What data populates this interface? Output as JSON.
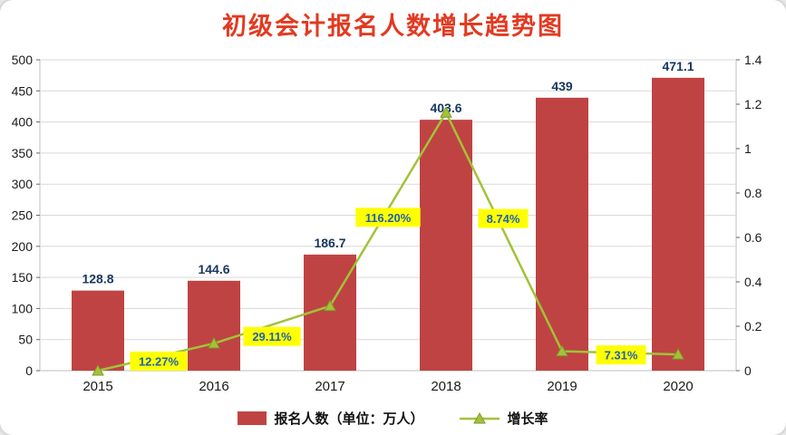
{
  "chart_data": {
    "type": "bar+line",
    "title": "初级会计报名人数增长趋势图",
    "categories": [
      "2015",
      "2016",
      "2017",
      "2018",
      "2019",
      "2020"
    ],
    "series": [
      {
        "name": "报名人数（单位：万人）",
        "type": "bar",
        "axis": "left",
        "values": [
          128.8,
          144.6,
          186.7,
          403.6,
          439,
          471.1
        ],
        "labels": [
          "128.8",
          "144.6",
          "186.7",
          "403.6",
          "439",
          "471.1"
        ],
        "color": "#bf4342"
      },
      {
        "name": "增长率",
        "type": "line",
        "axis": "right",
        "values": [
          0,
          0.1227,
          0.2911,
          1.162,
          0.0874,
          0.0731
        ],
        "labels": [
          "",
          "12.27%",
          "29.11%",
          "116.20%",
          "8.74%",
          "7.31%"
        ],
        "color": "#a2c239"
      }
    ],
    "axes": {
      "left": {
        "min": 0,
        "max": 500,
        "step": 50,
        "ticks": [
          "0",
          "50",
          "100",
          "150",
          "200",
          "250",
          "300",
          "350",
          "400",
          "450",
          "500"
        ]
      },
      "right": {
        "min": 0,
        "max": 1.4,
        "step": 0.2,
        "ticks": [
          "0",
          "0.2",
          "0.4",
          "0.6",
          "0.8",
          "1",
          "1.2",
          "1.4"
        ]
      }
    },
    "grid": true,
    "legend_position": "bottom"
  },
  "colors": {
    "title": "#e23a21",
    "bar": "#bf4342",
    "line": "#a2c239",
    "line_edge": "#7e9a2a",
    "bar_label": "#17375e",
    "growth_label_bg": "#ffff00",
    "growth_label_text": "#1f62b0",
    "axis_text": "#1a1a1a",
    "grid": "#d9d9d9",
    "border": "#bfbfbf"
  }
}
